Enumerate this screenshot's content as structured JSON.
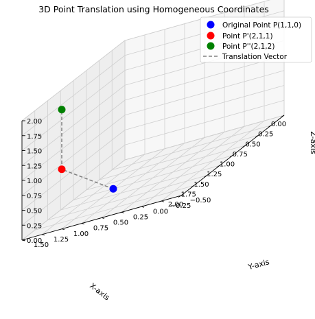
{
  "chart_data": {
    "type": "scatter",
    "projection": "3d",
    "title": "3D Point Translation using Homogeneous Coordinates",
    "xlabel": "X-axis",
    "ylabel": "Y-axis",
    "zlabel": "Z-axis",
    "xlim": [
      0,
      2
    ],
    "ylim": [
      -0.5,
      1.5
    ],
    "zlim": [
      0,
      2
    ],
    "xticks": [
      "0.00",
      "0.25",
      "0.50",
      "0.75",
      "1.00",
      "1.25",
      "1.50",
      "1.75",
      "2.00"
    ],
    "yticks": [
      "−0.50",
      "−0.25",
      "0.00",
      "0.25",
      "0.50",
      "0.75",
      "1.00",
      "1.25",
      "1.50"
    ],
    "zticks": [
      "0.00",
      "0.25",
      "0.50",
      "0.75",
      "1.00",
      "1.25",
      "1.50",
      "1.75",
      "2.00"
    ],
    "grid": true,
    "legend_position": "top-right",
    "series": [
      {
        "name": "Original Point P(1,1,0)",
        "x": 1,
        "y": 1,
        "z": 0,
        "color": "#0000ff"
      },
      {
        "name": "Point P'(2,1,1)",
        "x": 2,
        "y": 1,
        "z": 1,
        "color": "#ff0000"
      },
      {
        "name": "Point P''(2,1,2)",
        "x": 2,
        "y": 1,
        "z": 2,
        "color": "#008000"
      }
    ],
    "line": {
      "name": "Translation Vector",
      "color": "#808080",
      "style": "dashed",
      "points": [
        [
          1,
          1,
          0
        ],
        [
          2,
          1,
          1
        ],
        [
          2,
          1,
          2
        ]
      ]
    }
  }
}
